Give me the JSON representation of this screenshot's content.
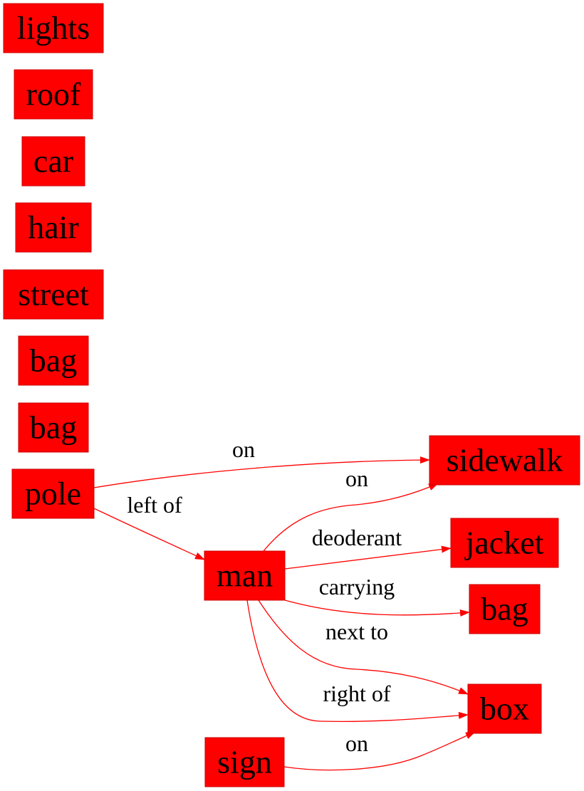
{
  "colors": {
    "node_fill": "#ff0000",
    "edge": "#ff0000",
    "text": "#000000",
    "background": "#ffffff"
  },
  "nodes": [
    {
      "id": "lights",
      "label": "lights"
    },
    {
      "id": "roof",
      "label": "roof"
    },
    {
      "id": "car",
      "label": "car"
    },
    {
      "id": "hair",
      "label": "hair"
    },
    {
      "id": "street",
      "label": "street"
    },
    {
      "id": "bag1",
      "label": "bag"
    },
    {
      "id": "bag2",
      "label": "bag"
    },
    {
      "id": "pole",
      "label": "pole"
    },
    {
      "id": "sidewalk",
      "label": "sidewalk"
    },
    {
      "id": "man",
      "label": "man"
    },
    {
      "id": "jacket",
      "label": "jacket"
    },
    {
      "id": "bag3",
      "label": "bag"
    },
    {
      "id": "box",
      "label": "box"
    },
    {
      "id": "sign",
      "label": "sign"
    }
  ],
  "edges": [
    {
      "id": "pole-sidewalk",
      "from": "pole",
      "to": "sidewalk",
      "label": "on"
    },
    {
      "id": "pole-man",
      "from": "pole",
      "to": "man",
      "label": "left of"
    },
    {
      "id": "man-sidewalk",
      "from": "man",
      "to": "sidewalk",
      "label": "on"
    },
    {
      "id": "man-jacket",
      "from": "man",
      "to": "jacket",
      "label": "deoderant"
    },
    {
      "id": "man-bag3",
      "from": "man",
      "to": "bag3",
      "label": "carrying"
    },
    {
      "id": "man-box-next",
      "from": "man",
      "to": "box",
      "label": "next to"
    },
    {
      "id": "man-box-right",
      "from": "man",
      "to": "box",
      "label": "right of"
    },
    {
      "id": "sign-box",
      "from": "sign",
      "to": "box",
      "label": "on"
    }
  ]
}
